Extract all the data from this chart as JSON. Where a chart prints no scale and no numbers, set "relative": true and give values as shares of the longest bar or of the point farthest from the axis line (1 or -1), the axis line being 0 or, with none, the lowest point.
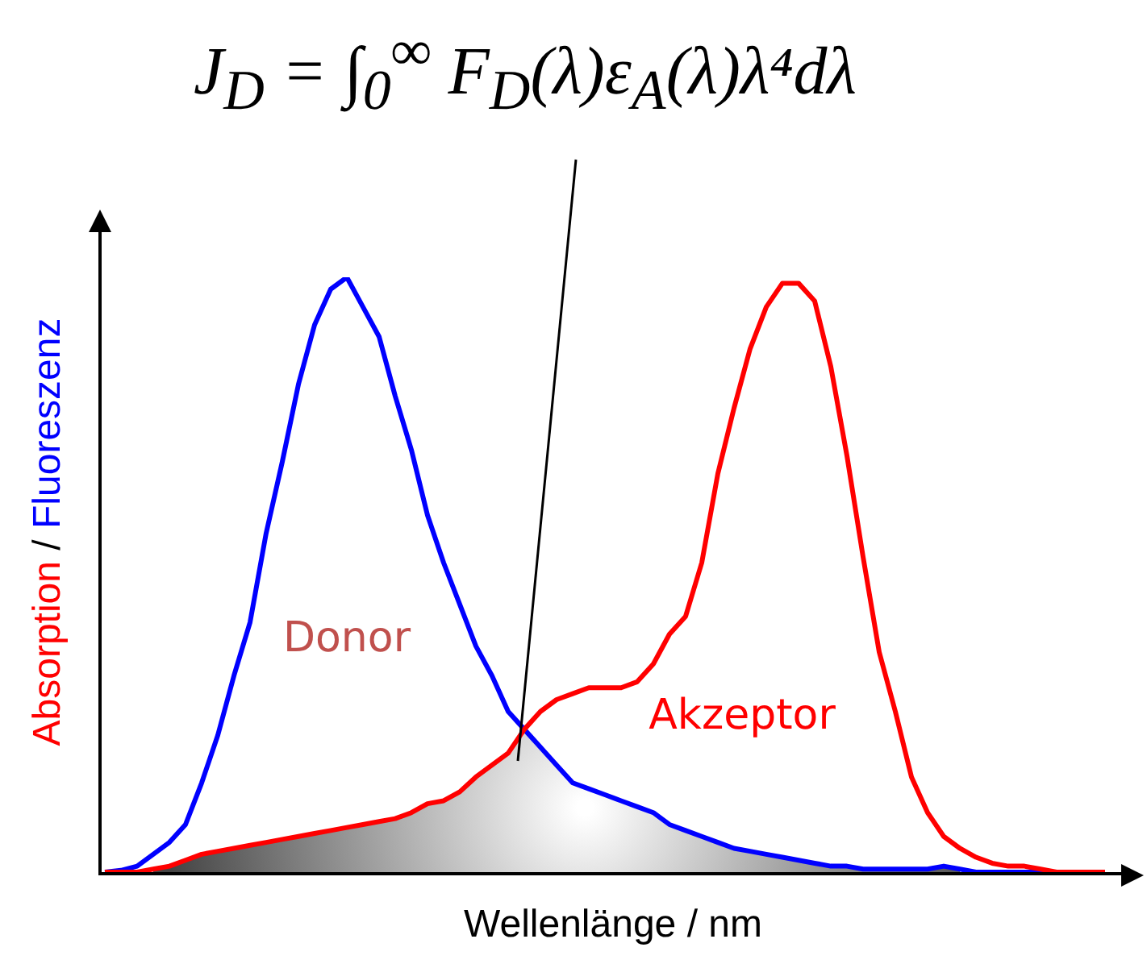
{
  "chart_data": {
    "type": "line",
    "title": "J$_{D}$ = ∫$_{0}$$^{∞}$ F$_{D}$(λ)ε$_{A}$(λ)λ⁴dλ",
    "xlabel": "Wellenlänge / nm",
    "ylabel": "Absorption / Fluoreszenz",
    "relative": true,
    "grid": false,
    "legend": false,
    "marker": "none",
    "line_style": "solid",
    "categories": [
      null,
      null,
      null,
      null,
      null,
      null,
      null,
      null,
      null,
      null,
      null,
      null,
      null,
      null,
      null,
      null,
      null,
      null,
      null,
      null,
      null,
      null,
      null,
      null,
      null,
      null,
      null,
      null,
      null,
      null,
      null,
      null,
      null,
      null,
      null,
      null,
      null,
      null,
      null,
      null,
      null,
      null,
      null,
      null,
      null,
      null,
      null,
      null,
      null,
      null,
      null,
      null,
      null,
      null,
      null,
      null,
      null,
      null,
      null,
      null,
      null,
      null,
      null
    ],
    "series": [
      {
        "name": "Akzeptor",
        "color": "#ff0000",
        "values": [
          0,
          0,
          0,
          0.005,
          0.01,
          0.02,
          0.03,
          0.035,
          0.04,
          0.045,
          0.05,
          0.055,
          0.06,
          0.065,
          0.07,
          0.075,
          0.08,
          0.085,
          0.09,
          0.1,
          0.115,
          0.12,
          0.135,
          0.16,
          0.18,
          0.2,
          0.24,
          0.27,
          0.29,
          0.3,
          0.31,
          0.31,
          0.31,
          0.32,
          0.35,
          0.4,
          0.43,
          0.52,
          0.67,
          0.78,
          0.88,
          0.95,
          0.99,
          0.99,
          0.96,
          0.85,
          0.7,
          0.53,
          0.37,
          0.27,
          0.16,
          0.1,
          0.06,
          0.04,
          0.025,
          0.015,
          0.01,
          0.01,
          0.005,
          0,
          0,
          0,
          0
        ]
      },
      {
        "name": "Donor",
        "color": "#0000ff",
        "values": [
          0,
          0.003,
          0.01,
          0.03,
          0.05,
          0.08,
          0.15,
          0.23,
          0.33,
          0.42,
          0.57,
          0.69,
          0.82,
          0.92,
          0.98,
          1,
          0.95,
          0.9,
          0.8,
          0.71,
          0.6,
          0.52,
          0.45,
          0.38,
          0.33,
          0.27,
          0.24,
          0.21,
          0.18,
          0.15,
          0.14,
          0.13,
          0.12,
          0.11,
          0.1,
          0.08,
          0.07,
          0.06,
          0.05,
          0.04,
          0.035,
          0.03,
          0.025,
          0.02,
          0.015,
          0.01,
          0.01,
          0.005,
          0.005,
          0.005,
          0.005,
          0.005,
          0.01,
          0.005,
          0,
          0,
          0,
          0,
          0,
          0,
          null,
          null,
          null
        ]
      },
      {
        "type": "area",
        "color": "#444444",
        "values": [
          null,
          null,
          null,
          0.005,
          0.01,
          0.02,
          0.03,
          0.035,
          0.04,
          0.045,
          0.05,
          0.055,
          0.06,
          0.065,
          0.07,
          0.075,
          0.08,
          0.085,
          0.09,
          0.1,
          0.115,
          0.12,
          0.135,
          0.16,
          0.18,
          0.2,
          0.24,
          0.21,
          0.18,
          0.15,
          0.14,
          0.13,
          0.12,
          0.11,
          0.1,
          0.08,
          0.07,
          0.06,
          0.05,
          0.04,
          0.035,
          0.03,
          0.025,
          0.02,
          0.015,
          0.01,
          0.01,
          0.005,
          0.005,
          0.005,
          0.005,
          0.005,
          0.01,
          0.005,
          null,
          null,
          null,
          null,
          null,
          null,
          null,
          null,
          null
        ]
      }
    ]
  }
}
